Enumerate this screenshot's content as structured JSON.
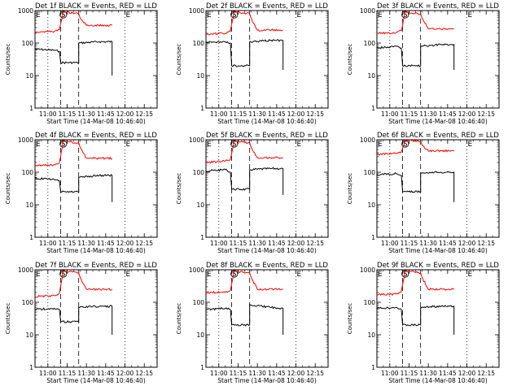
{
  "chart_data": {
    "type": "line",
    "layout": "3x3 grid",
    "xlabel": "Start Time (14-Mar-08 10:46:40)",
    "ylabel": "Counts/sec",
    "yscale": "log",
    "ylim": [
      1,
      1000
    ],
    "y_ticks": [
      1,
      10,
      100,
      1000
    ],
    "y_tick_labels": [
      "1",
      "10",
      "100",
      "1000"
    ],
    "xlim": [
      "10:50",
      "12:25"
    ],
    "x_ticks": [
      "11:00",
      "11:15",
      "11:30",
      "11:45",
      "12:00",
      "12:15"
    ],
    "legend": [
      {
        "name": "Events",
        "color": "#000000"
      },
      {
        "name": "LLD",
        "color": "#ff0000"
      }
    ],
    "markers": [
      {
        "label": "E",
        "time": "10:50",
        "line": "none"
      },
      {
        "label": "S",
        "time": "11:12",
        "line": "none"
      },
      {
        "label": "",
        "time": "11:00",
        "line": "dotted"
      },
      {
        "label": "",
        "time": "11:10",
        "line": "dashed"
      },
      {
        "label": "",
        "time": "11:24",
        "line": "dashed"
      },
      {
        "label": "E",
        "time": "12:00",
        "line": "dotted"
      }
    ],
    "panels": [
      {
        "title": "Det 1f BLACK = Events, RED = LLD",
        "series": [
          {
            "name": "Events",
            "x": [
              "10:50",
              "11:05",
              "11:09",
              "11:10",
              "11:24",
              "11:24",
              "11:40",
              "11:50",
              "11:50"
            ],
            "y": [
              65,
              60,
              55,
              25,
              25,
              100,
              110,
              110,
              10
            ]
          },
          {
            "name": "LLD",
            "x": [
              "10:50",
              "11:05",
              "11:09",
              "11:12",
              "11:14",
              "11:24",
              "11:25",
              "11:30",
              "11:50"
            ],
            "y": [
              220,
              230,
              260,
              900,
              900,
              800,
              600,
              350,
              350
            ]
          }
        ]
      },
      {
        "title": "Det 2f BLACK = Events, RED = LLD",
        "series": [
          {
            "name": "Events",
            "x": [
              "10:50",
              "11:05",
              "11:09",
              "11:10",
              "11:24",
              "11:24",
              "11:40",
              "11:50",
              "11:50"
            ],
            "y": [
              105,
              110,
              100,
              20,
              20,
              110,
              120,
              120,
              15
            ]
          },
          {
            "name": "LLD",
            "x": [
              "10:50",
              "11:05",
              "11:09",
              "11:12",
              "11:14",
              "11:24",
              "11:25",
              "11:30",
              "11:50"
            ],
            "y": [
              190,
              200,
              230,
              900,
              900,
              800,
              600,
              250,
              250
            ]
          }
        ]
      },
      {
        "title": "Det 3f BLACK = Events, RED = LLD",
        "series": [
          {
            "name": "Events",
            "x": [
              "10:50",
              "11:05",
              "11:09",
              "11:10",
              "11:24",
              "11:24",
              "11:40",
              "11:50",
              "11:50"
            ],
            "y": [
              70,
              80,
              70,
              20,
              20,
              80,
              90,
              90,
              15
            ]
          },
          {
            "name": "LLD",
            "x": [
              "10:50",
              "11:05",
              "11:09",
              "11:12",
              "11:14",
              "11:24",
              "11:25",
              "11:30",
              "11:50"
            ],
            "y": [
              200,
              210,
              240,
              900,
              900,
              800,
              600,
              270,
              270
            ]
          }
        ]
      },
      {
        "title": "Det 4f BLACK = Events, RED = LLD",
        "series": [
          {
            "name": "Events",
            "x": [
              "10:50",
              "11:05",
              "11:09",
              "11:10",
              "11:24",
              "11:24",
              "11:40",
              "11:50",
              "11:50"
            ],
            "y": [
              65,
              60,
              55,
              25,
              25,
              70,
              80,
              80,
              12
            ]
          },
          {
            "name": "LLD",
            "x": [
              "10:50",
              "11:05",
              "11:09",
              "11:12",
              "11:14",
              "11:24",
              "11:25",
              "11:30",
              "11:50"
            ],
            "y": [
              160,
              170,
              200,
              900,
              900,
              800,
              600,
              270,
              270
            ]
          }
        ]
      },
      {
        "title": "Det 5f BLACK = Events, RED = LLD",
        "series": [
          {
            "name": "Events",
            "x": [
              "10:50",
              "11:05",
              "11:09",
              "11:10",
              "11:24",
              "11:24",
              "11:40",
              "11:50",
              "11:50"
            ],
            "y": [
              110,
              120,
              100,
              30,
              30,
              120,
              130,
              130,
              20
            ]
          },
          {
            "name": "LLD",
            "x": [
              "10:50",
              "11:05",
              "11:09",
              "11:12",
              "11:14",
              "11:24",
              "11:25",
              "11:30",
              "11:50"
            ],
            "y": [
              200,
              220,
              250,
              900,
              900,
              800,
              600,
              280,
              280
            ]
          }
        ]
      },
      {
        "title": "Det 6f BLACK = Events, RED = LLD",
        "series": [
          {
            "name": "Events",
            "x": [
              "10:50",
              "11:05",
              "11:09",
              "11:10",
              "11:24",
              "11:24",
              "11:40",
              "11:50",
              "11:50"
            ],
            "y": [
              85,
              90,
              80,
              25,
              25,
              95,
              100,
              100,
              12
            ]
          },
          {
            "name": "LLD",
            "x": [
              "10:50",
              "11:05",
              "11:09",
              "11:12",
              "11:14",
              "11:24",
              "11:25",
              "11:30",
              "11:50"
            ],
            "y": [
              350,
              380,
              420,
              950,
              950,
              900,
              700,
              450,
              450
            ]
          }
        ]
      },
      {
        "title": "Det 7f BLACK = Events, RED = LLD",
        "series": [
          {
            "name": "Events",
            "x": [
              "10:50",
              "11:05",
              "11:09",
              "11:10",
              "11:24",
              "11:24",
              "11:40",
              "11:50",
              "11:50"
            ],
            "y": [
              60,
              65,
              60,
              25,
              25,
              70,
              75,
              75,
              10
            ]
          },
          {
            "name": "LLD",
            "x": [
              "10:50",
              "11:05",
              "11:09",
              "11:12",
              "11:14",
              "11:24",
              "11:25",
              "11:30",
              "11:50"
            ],
            "y": [
              150,
              160,
              190,
              900,
              900,
              800,
              600,
              250,
              250
            ]
          }
        ]
      },
      {
        "title": "Det 8f BLACK = Events, RED = LLD",
        "series": [
          {
            "name": "Events",
            "x": [
              "10:50",
              "11:05",
              "11:09",
              "11:10",
              "11:24",
              "11:24",
              "11:40",
              "11:50",
              "11:50"
            ],
            "y": [
              60,
              65,
              60,
              20,
              20,
              85,
              70,
              65,
              10
            ]
          },
          {
            "name": "LLD",
            "x": [
              "10:50",
              "11:05",
              "11:09",
              "11:12",
              "11:14",
              "11:24",
              "11:25",
              "11:30",
              "11:50"
            ],
            "y": [
              200,
              200,
              230,
              900,
              900,
              800,
              600,
              250,
              250
            ]
          }
        ]
      },
      {
        "title": "Det 9f BLACK = Events, RED = LLD",
        "series": [
          {
            "name": "Events",
            "x": [
              "10:50",
              "11:05",
              "11:09",
              "11:10",
              "11:24",
              "11:24",
              "11:40",
              "11:50",
              "11:50"
            ],
            "y": [
              65,
              70,
              60,
              20,
              20,
              70,
              75,
              75,
              10
            ]
          },
          {
            "name": "LLD",
            "x": [
              "10:50",
              "11:05",
              "11:09",
              "11:12",
              "11:14",
              "11:24",
              "11:25",
              "11:30",
              "11:50"
            ],
            "y": [
              170,
              180,
              210,
              900,
              900,
              800,
              600,
              250,
              250
            ]
          }
        ]
      }
    ]
  }
}
